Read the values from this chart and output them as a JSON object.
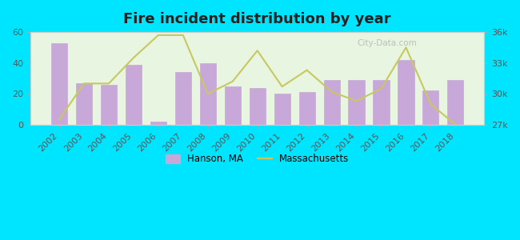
{
  "title": "Fire incident distribution by year",
  "years": [
    2002,
    2003,
    2004,
    2005,
    2006,
    2007,
    2008,
    2009,
    2010,
    2011,
    2012,
    2013,
    2014,
    2015,
    2016,
    2017,
    2018
  ],
  "hanson_values": [
    53,
    27,
    26,
    39,
    2,
    34,
    40,
    25,
    24,
    20,
    21,
    29,
    29,
    29,
    42,
    22,
    29
  ],
  "ma_values": [
    27500,
    31000,
    31000,
    33500,
    35700,
    35700,
    30000,
    31200,
    34200,
    30700,
    32300,
    30200,
    29300,
    30500,
    34500,
    29000,
    27000
  ],
  "bar_color": "#c8a8d8",
  "bar_edge_color": "#c8a8d8",
  "line_color": "#c8c860",
  "background_color": "#e8f5e0",
  "outer_background": "#00e5ff",
  "left_ylim": [
    0,
    60
  ],
  "right_ylim": [
    27000,
    36000
  ],
  "left_yticks": [
    0,
    20,
    40,
    60
  ],
  "right_yticks": [
    27000,
    30000,
    33000,
    36000
  ],
  "right_yticklabels": [
    "27k",
    "30k",
    "33k",
    "36k"
  ],
  "watermark": "City-Data.com"
}
